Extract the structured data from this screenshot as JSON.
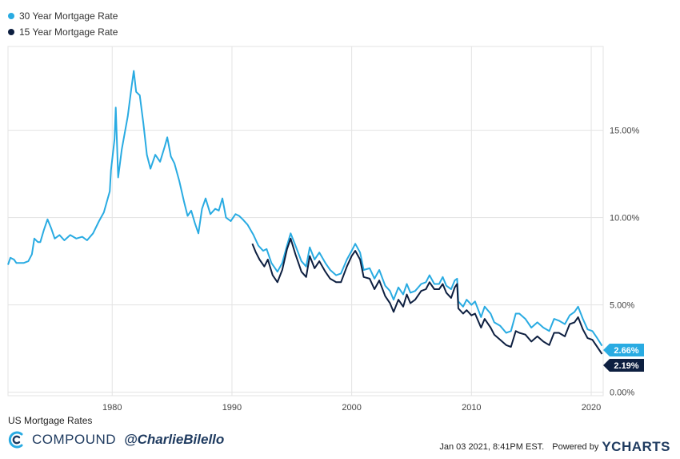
{
  "chart_data": {
    "type": "line",
    "title": "US Mortgage Rates",
    "x_ticks": [
      "1980",
      "1990",
      "2000",
      "2010",
      "2020"
    ],
    "y_ticks": [
      "0.00%",
      "5.00%",
      "10.00%",
      "15.00%"
    ],
    "xlim": [
      1971.3,
      2021.0
    ],
    "ylim": [
      -0.2,
      19.8
    ],
    "grid": true,
    "legend_position": "top-left",
    "series": [
      {
        "name": "30 Year Mortgage Rate",
        "color": "#29abe2",
        "end_label": "2.66%",
        "points": [
          [
            1971.3,
            7.3
          ],
          [
            1971.5,
            7.7
          ],
          [
            1971.8,
            7.6
          ],
          [
            1972.0,
            7.4
          ],
          [
            1972.6,
            7.4
          ],
          [
            1973.0,
            7.5
          ],
          [
            1973.3,
            7.9
          ],
          [
            1973.5,
            8.8
          ],
          [
            1973.8,
            8.6
          ],
          [
            1974.0,
            8.6
          ],
          [
            1974.3,
            9.3
          ],
          [
            1974.6,
            9.9
          ],
          [
            1974.9,
            9.4
          ],
          [
            1975.2,
            8.8
          ],
          [
            1975.6,
            9.0
          ],
          [
            1976.0,
            8.7
          ],
          [
            1976.5,
            9.0
          ],
          [
            1977.0,
            8.8
          ],
          [
            1977.5,
            8.9
          ],
          [
            1977.9,
            8.7
          ],
          [
            1978.4,
            9.1
          ],
          [
            1978.9,
            9.8
          ],
          [
            1979.3,
            10.3
          ],
          [
            1979.8,
            11.5
          ],
          [
            1979.9,
            12.7
          ],
          [
            1980.2,
            14.5
          ],
          [
            1980.3,
            16.3
          ],
          [
            1980.5,
            12.3
          ],
          [
            1980.8,
            13.9
          ],
          [
            1981.3,
            15.8
          ],
          [
            1981.6,
            17.4
          ],
          [
            1981.8,
            18.4
          ],
          [
            1982.0,
            17.2
          ],
          [
            1982.3,
            17.0
          ],
          [
            1982.6,
            15.4
          ],
          [
            1982.9,
            13.6
          ],
          [
            1983.2,
            12.8
          ],
          [
            1983.6,
            13.6
          ],
          [
            1984.0,
            13.2
          ],
          [
            1984.4,
            14.1
          ],
          [
            1984.6,
            14.6
          ],
          [
            1984.9,
            13.5
          ],
          [
            1985.2,
            13.1
          ],
          [
            1985.6,
            12.1
          ],
          [
            1986.0,
            10.9
          ],
          [
            1986.3,
            10.1
          ],
          [
            1986.6,
            10.4
          ],
          [
            1986.9,
            9.7
          ],
          [
            1987.2,
            9.1
          ],
          [
            1987.5,
            10.5
          ],
          [
            1987.8,
            11.1
          ],
          [
            1988.2,
            10.2
          ],
          [
            1988.6,
            10.5
          ],
          [
            1988.9,
            10.4
          ],
          [
            1989.2,
            11.1
          ],
          [
            1989.5,
            10.0
          ],
          [
            1989.9,
            9.8
          ],
          [
            1990.3,
            10.2
          ],
          [
            1990.6,
            10.1
          ],
          [
            1990.9,
            9.9
          ],
          [
            1991.3,
            9.6
          ],
          [
            1991.8,
            9.0
          ],
          [
            1992.2,
            8.4
          ],
          [
            1992.6,
            8.1
          ],
          [
            1992.9,
            8.2
          ],
          [
            1993.3,
            7.4
          ],
          [
            1993.8,
            6.9
          ],
          [
            1994.2,
            7.4
          ],
          [
            1994.6,
            8.4
          ],
          [
            1994.9,
            9.1
          ],
          [
            1995.3,
            8.4
          ],
          [
            1995.8,
            7.5
          ],
          [
            1996.2,
            7.2
          ],
          [
            1996.5,
            8.3
          ],
          [
            1996.9,
            7.6
          ],
          [
            1997.3,
            8.0
          ],
          [
            1997.8,
            7.4
          ],
          [
            1998.2,
            7.0
          ],
          [
            1998.7,
            6.7
          ],
          [
            1999.1,
            6.8
          ],
          [
            1999.6,
            7.6
          ],
          [
            2000.0,
            8.1
          ],
          [
            2000.3,
            8.5
          ],
          [
            2000.7,
            8.0
          ],
          [
            2001.0,
            7.0
          ],
          [
            2001.5,
            7.1
          ],
          [
            2001.9,
            6.5
          ],
          [
            2002.3,
            7.0
          ],
          [
            2002.8,
            6.1
          ],
          [
            2003.2,
            5.8
          ],
          [
            2003.5,
            5.3
          ],
          [
            2003.9,
            6.0
          ],
          [
            2004.3,
            5.6
          ],
          [
            2004.6,
            6.2
          ],
          [
            2004.9,
            5.7
          ],
          [
            2005.3,
            5.8
          ],
          [
            2005.8,
            6.2
          ],
          [
            2006.2,
            6.3
          ],
          [
            2006.5,
            6.7
          ],
          [
            2006.9,
            6.2
          ],
          [
            2007.3,
            6.2
          ],
          [
            2007.6,
            6.6
          ],
          [
            2007.9,
            6.1
          ],
          [
            2008.3,
            5.9
          ],
          [
            2008.6,
            6.4
          ],
          [
            2008.8,
            6.5
          ],
          [
            2008.9,
            5.2
          ],
          [
            2009.3,
            4.9
          ],
          [
            2009.6,
            5.3
          ],
          [
            2010.0,
            5.0
          ],
          [
            2010.3,
            5.2
          ],
          [
            2010.8,
            4.3
          ],
          [
            2011.1,
            4.9
          ],
          [
            2011.6,
            4.5
          ],
          [
            2011.9,
            4.0
          ],
          [
            2012.4,
            3.8
          ],
          [
            2012.9,
            3.4
          ],
          [
            2013.3,
            3.5
          ],
          [
            2013.7,
            4.5
          ],
          [
            2014.0,
            4.5
          ],
          [
            2014.5,
            4.2
          ],
          [
            2015.0,
            3.7
          ],
          [
            2015.5,
            4.0
          ],
          [
            2016.0,
            3.7
          ],
          [
            2016.5,
            3.5
          ],
          [
            2016.9,
            4.2
          ],
          [
            2017.3,
            4.1
          ],
          [
            2017.8,
            3.9
          ],
          [
            2018.2,
            4.4
          ],
          [
            2018.6,
            4.6
          ],
          [
            2018.9,
            4.9
          ],
          [
            2019.3,
            4.2
          ],
          [
            2019.7,
            3.6
          ],
          [
            2020.1,
            3.5
          ],
          [
            2020.5,
            3.1
          ],
          [
            2020.9,
            2.66
          ]
        ]
      },
      {
        "name": "15 Year Mortgage Rate",
        "color": "#0d1f40",
        "end_label": "2.19%",
        "points": [
          [
            1991.7,
            8.5
          ],
          [
            1992.0,
            8.0
          ],
          [
            1992.3,
            7.6
          ],
          [
            1992.7,
            7.2
          ],
          [
            1993.0,
            7.6
          ],
          [
            1993.4,
            6.7
          ],
          [
            1993.8,
            6.3
          ],
          [
            1994.2,
            7.0
          ],
          [
            1994.6,
            8.2
          ],
          [
            1994.9,
            8.8
          ],
          [
            1995.3,
            7.9
          ],
          [
            1995.8,
            6.9
          ],
          [
            1996.2,
            6.6
          ],
          [
            1996.5,
            7.8
          ],
          [
            1996.9,
            7.1
          ],
          [
            1997.3,
            7.5
          ],
          [
            1997.8,
            6.9
          ],
          [
            1998.2,
            6.5
          ],
          [
            1998.7,
            6.3
          ],
          [
            1999.1,
            6.3
          ],
          [
            1999.6,
            7.2
          ],
          [
            2000.0,
            7.8
          ],
          [
            2000.3,
            8.1
          ],
          [
            2000.7,
            7.6
          ],
          [
            2001.0,
            6.6
          ],
          [
            2001.5,
            6.5
          ],
          [
            2001.9,
            5.9
          ],
          [
            2002.3,
            6.4
          ],
          [
            2002.8,
            5.5
          ],
          [
            2003.2,
            5.1
          ],
          [
            2003.5,
            4.6
          ],
          [
            2003.9,
            5.3
          ],
          [
            2004.3,
            4.9
          ],
          [
            2004.6,
            5.6
          ],
          [
            2004.9,
            5.1
          ],
          [
            2005.3,
            5.3
          ],
          [
            2005.8,
            5.8
          ],
          [
            2006.2,
            5.9
          ],
          [
            2006.5,
            6.3
          ],
          [
            2006.9,
            5.9
          ],
          [
            2007.3,
            5.9
          ],
          [
            2007.6,
            6.2
          ],
          [
            2007.9,
            5.7
          ],
          [
            2008.3,
            5.4
          ],
          [
            2008.6,
            6.0
          ],
          [
            2008.8,
            6.2
          ],
          [
            2008.9,
            4.8
          ],
          [
            2009.3,
            4.5
          ],
          [
            2009.6,
            4.7
          ],
          [
            2010.0,
            4.4
          ],
          [
            2010.3,
            4.5
          ],
          [
            2010.8,
            3.7
          ],
          [
            2011.1,
            4.2
          ],
          [
            2011.6,
            3.7
          ],
          [
            2011.9,
            3.3
          ],
          [
            2012.4,
            3.0
          ],
          [
            2012.9,
            2.7
          ],
          [
            2013.3,
            2.6
          ],
          [
            2013.7,
            3.5
          ],
          [
            2014.0,
            3.4
          ],
          [
            2014.5,
            3.3
          ],
          [
            2015.0,
            2.9
          ],
          [
            2015.5,
            3.2
          ],
          [
            2016.0,
            2.9
          ],
          [
            2016.5,
            2.7
          ],
          [
            2016.9,
            3.4
          ],
          [
            2017.3,
            3.4
          ],
          [
            2017.8,
            3.2
          ],
          [
            2018.2,
            3.9
          ],
          [
            2018.6,
            4.0
          ],
          [
            2018.9,
            4.3
          ],
          [
            2019.3,
            3.6
          ],
          [
            2019.7,
            3.1
          ],
          [
            2020.1,
            3.0
          ],
          [
            2020.5,
            2.6
          ],
          [
            2020.9,
            2.19
          ]
        ]
      }
    ]
  },
  "footer": {
    "chart_label": "US Mortgage Rates",
    "brand_name": "COMPOUND",
    "brand_handle": "@CharlieBilello",
    "timestamp": "Jan 03 2021, 8:41PM EST.",
    "powered_by": "Powered by",
    "ycharts": "YCHARTS",
    "brand_color": "#1e3a5f"
  }
}
